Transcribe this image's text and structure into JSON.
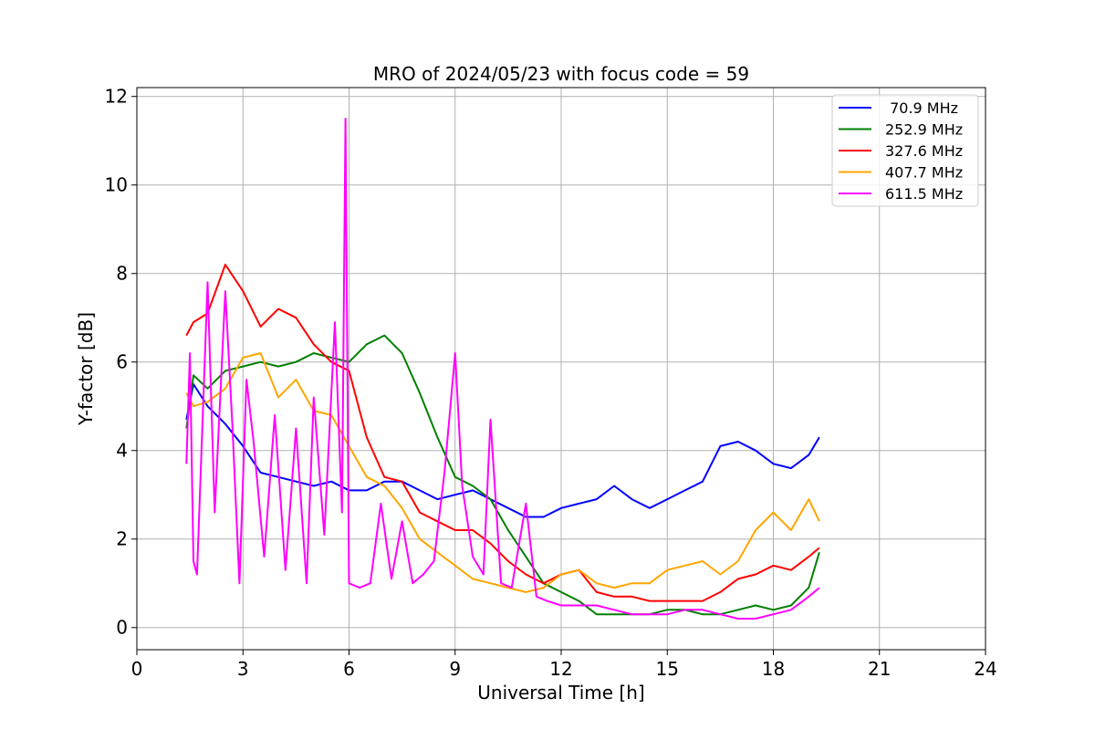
{
  "chart_data": {
    "type": "line",
    "title": "MRO of 2024/05/23 with focus code = 59",
    "xlabel": "Universal Time [h]",
    "ylabel": "Y-factor [dB]",
    "xlim": [
      0,
      24
    ],
    "ylim": [
      -0.5,
      12.2
    ],
    "xticks": [
      0,
      3,
      6,
      9,
      12,
      15,
      18,
      21,
      24
    ],
    "yticks": [
      0,
      2,
      4,
      6,
      8,
      10,
      12
    ],
    "grid": true,
    "legend_position": "top-right",
    "series": [
      {
        "name": " 70.9 MHz",
        "color": "#0000ff",
        "x": [
          1.4,
          1.6,
          2.0,
          2.5,
          3.0,
          3.5,
          4.0,
          4.5,
          5.0,
          5.5,
          6.0,
          6.5,
          7.0,
          7.5,
          8.0,
          8.5,
          9.0,
          9.5,
          10.0,
          10.5,
          11.0,
          11.5,
          12.0,
          12.5,
          13.0,
          13.5,
          14.0,
          14.5,
          15.0,
          15.5,
          16.0,
          16.5,
          17.0,
          17.5,
          18.0,
          18.5,
          19.0,
          19.3
        ],
        "values": [
          4.7,
          5.5,
          5.0,
          4.6,
          4.1,
          3.5,
          3.4,
          3.3,
          3.2,
          3.3,
          3.1,
          3.1,
          3.3,
          3.3,
          3.1,
          2.9,
          3.0,
          3.1,
          2.9,
          2.7,
          2.5,
          2.5,
          2.7,
          2.8,
          2.9,
          3.2,
          2.9,
          2.7,
          2.9,
          3.1,
          3.3,
          4.1,
          4.2,
          4.0,
          3.7,
          3.6,
          3.9,
          4.3
        ]
      },
      {
        "name": "252.9 MHz",
        "color": "#008000",
        "x": [
          1.4,
          1.6,
          2.0,
          2.5,
          3.0,
          3.5,
          4.0,
          4.5,
          5.0,
          5.5,
          6.0,
          6.5,
          7.0,
          7.5,
          8.0,
          8.5,
          9.0,
          9.5,
          10.0,
          10.5,
          11.0,
          11.5,
          12.0,
          12.5,
          13.0,
          13.5,
          14.0,
          14.5,
          15.0,
          15.5,
          16.0,
          16.5,
          17.0,
          17.5,
          18.0,
          18.5,
          19.0,
          19.3
        ],
        "values": [
          4.5,
          5.7,
          5.4,
          5.8,
          5.9,
          6.0,
          5.9,
          6.0,
          6.2,
          6.1,
          6.0,
          6.4,
          6.6,
          6.2,
          5.3,
          4.3,
          3.4,
          3.2,
          2.9,
          2.2,
          1.6,
          1.0,
          0.8,
          0.6,
          0.3,
          0.3,
          0.3,
          0.3,
          0.4,
          0.4,
          0.3,
          0.3,
          0.4,
          0.5,
          0.4,
          0.5,
          0.9,
          1.7
        ]
      },
      {
        "name": "327.6 MHz",
        "color": "#ff0000",
        "x": [
          1.4,
          1.6,
          2.0,
          2.5,
          3.0,
          3.5,
          4.0,
          4.5,
          5.0,
          5.5,
          6.0,
          6.5,
          7.0,
          7.5,
          8.0,
          8.5,
          9.0,
          9.5,
          10.0,
          10.5,
          11.0,
          11.5,
          12.0,
          12.5,
          13.0,
          13.5,
          14.0,
          14.5,
          15.0,
          15.5,
          16.0,
          16.5,
          17.0,
          17.5,
          18.0,
          18.5,
          19.0,
          19.3
        ],
        "values": [
          6.6,
          6.9,
          7.1,
          8.2,
          7.6,
          6.8,
          7.2,
          7.0,
          6.4,
          6.0,
          5.8,
          4.3,
          3.4,
          3.3,
          2.6,
          2.4,
          2.2,
          2.2,
          1.9,
          1.5,
          1.2,
          1.0,
          1.2,
          1.3,
          0.8,
          0.7,
          0.7,
          0.6,
          0.6,
          0.6,
          0.6,
          0.8,
          1.1,
          1.2,
          1.4,
          1.3,
          1.6,
          1.8
        ]
      },
      {
        "name": "407.7 MHz",
        "color": "#ffa500",
        "x": [
          1.4,
          1.6,
          2.0,
          2.5,
          3.0,
          3.5,
          4.0,
          4.5,
          5.0,
          5.5,
          6.0,
          6.5,
          7.0,
          7.5,
          8.0,
          8.5,
          9.0,
          9.5,
          10.0,
          10.5,
          11.0,
          11.5,
          12.0,
          12.5,
          13.0,
          13.5,
          14.0,
          14.5,
          15.0,
          15.5,
          16.0,
          16.5,
          17.0,
          17.5,
          18.0,
          18.5,
          19.0,
          19.3
        ],
        "values": [
          5.3,
          5.0,
          5.1,
          5.4,
          6.1,
          6.2,
          5.2,
          5.6,
          4.9,
          4.8,
          4.1,
          3.4,
          3.2,
          2.7,
          2.0,
          1.7,
          1.4,
          1.1,
          1.0,
          0.9,
          0.8,
          0.9,
          1.2,
          1.3,
          1.0,
          0.9,
          1.0,
          1.0,
          1.3,
          1.4,
          1.5,
          1.2,
          1.5,
          2.2,
          2.6,
          2.2,
          2.9,
          2.4
        ]
      },
      {
        "name": "611.5 MHz",
        "color": "#ff00ff",
        "x": [
          1.4,
          1.5,
          1.6,
          1.7,
          2.0,
          2.2,
          2.5,
          2.7,
          2.9,
          3.1,
          3.3,
          3.6,
          3.9,
          4.2,
          4.5,
          4.8,
          5.0,
          5.3,
          5.6,
          5.8,
          5.9,
          6.0,
          6.3,
          6.6,
          6.9,
          7.2,
          7.5,
          7.8,
          8.1,
          8.4,
          8.7,
          9.0,
          9.2,
          9.5,
          9.8,
          10.0,
          10.3,
          10.6,
          11.0,
          11.3,
          11.6,
          12.0,
          12.5,
          13.0,
          13.5,
          14.0,
          14.5,
          15.0,
          15.5,
          16.0,
          16.5,
          17.0,
          17.5,
          18.0,
          18.5,
          19.0,
          19.3
        ],
        "values": [
          3.7,
          6.2,
          1.5,
          1.2,
          7.8,
          2.6,
          7.6,
          4.6,
          1.0,
          5.6,
          4.2,
          1.6,
          4.8,
          1.3,
          4.5,
          1.0,
          5.2,
          2.1,
          6.9,
          2.6,
          11.5,
          1.0,
          0.9,
          1.0,
          2.8,
          1.1,
          2.4,
          1.0,
          1.2,
          1.5,
          3.5,
          6.2,
          3.2,
          1.6,
          1.2,
          4.7,
          1.0,
          0.9,
          2.8,
          0.7,
          0.6,
          0.5,
          0.5,
          0.5,
          0.4,
          0.3,
          0.3,
          0.3,
          0.4,
          0.4,
          0.3,
          0.2,
          0.2,
          0.3,
          0.4,
          0.7,
          0.9
        ]
      }
    ]
  }
}
